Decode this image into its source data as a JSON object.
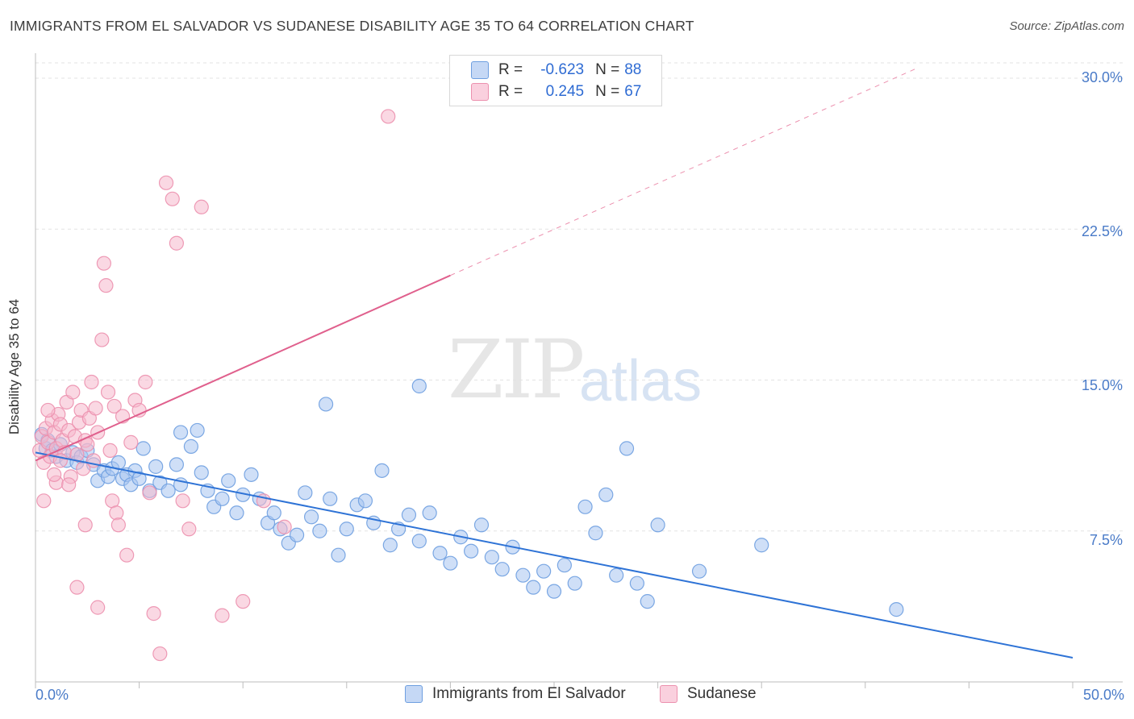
{
  "title": "IMMIGRANTS FROM EL SALVADOR VS SUDANESE DISABILITY AGE 35 TO 64 CORRELATION CHART",
  "source": "Source: ZipAtlas.com",
  "watermark": {
    "zip": "ZIP",
    "atlas": "atlas"
  },
  "legend_top": [
    {
      "r_label": "R =",
      "r_value": "-0.623",
      "n_label": "N =",
      "n_value": "88",
      "color": "#a8c5f0"
    },
    {
      "r_label": "R =",
      "r_value": "0.245",
      "n_label": "N =",
      "n_value": "67",
      "color": "#f6b8cc"
    }
  ],
  "colors": {
    "blue_fill": "#a8c5f0",
    "blue_stroke": "#6e9fe0",
    "blue_line": "#2e73d6",
    "pink_fill": "#f6b8cc",
    "pink_stroke": "#ec90ae",
    "pink_line": "#e0608d",
    "grid": "#e3e3e3",
    "tick_text": "#4a7bc8"
  },
  "chart_data": {
    "type": "scatter",
    "title": "IMMIGRANTS FROM EL SALVADOR VS SUDANESE DISABILITY AGE 35 TO 64 CORRELATION CHART",
    "xlabel": "",
    "ylabel": "Disability Age 35 to 64",
    "xlim": [
      0,
      50
    ],
    "ylim": [
      0,
      31
    ],
    "x_tick_labels": [
      "0.0%",
      "50.0%"
    ],
    "y_ticks": [
      7.5,
      15.0,
      22.5,
      30.0
    ],
    "y_tick_labels": [
      "7.5%",
      "15.0%",
      "22.5%",
      "30.0%"
    ],
    "grid": true,
    "legend_position": "top-center",
    "series": [
      {
        "name": "Immigrants from El Salvador",
        "color": "#a8c5f0",
        "trend": {
          "x": [
            0,
            50
          ],
          "y": [
            11.4,
            1.2
          ],
          "style": "solid"
        },
        "points": [
          [
            0.3,
            12.3
          ],
          [
            0.5,
            11.6
          ],
          [
            0.6,
            12.0
          ],
          [
            0.8,
            11.5
          ],
          [
            1.0,
            11.2
          ],
          [
            1.2,
            11.8
          ],
          [
            1.5,
            11.0
          ],
          [
            1.8,
            11.4
          ],
          [
            2.0,
            10.9
          ],
          [
            2.2,
            11.2
          ],
          [
            2.5,
            11.5
          ],
          [
            2.8,
            10.8
          ],
          [
            3.0,
            10.0
          ],
          [
            3.3,
            10.5
          ],
          [
            3.5,
            10.2
          ],
          [
            3.7,
            10.6
          ],
          [
            4.0,
            10.9
          ],
          [
            4.2,
            10.1
          ],
          [
            4.4,
            10.3
          ],
          [
            4.6,
            9.8
          ],
          [
            4.8,
            10.5
          ],
          [
            5.0,
            10.1
          ],
          [
            5.2,
            11.6
          ],
          [
            5.5,
            9.5
          ],
          [
            5.8,
            10.7
          ],
          [
            6.0,
            9.9
          ],
          [
            6.4,
            9.5
          ],
          [
            6.8,
            10.8
          ],
          [
            7.0,
            9.8
          ],
          [
            7.5,
            11.7
          ],
          [
            7.8,
            12.5
          ],
          [
            8.0,
            10.4
          ],
          [
            8.3,
            9.5
          ],
          [
            8.6,
            8.7
          ],
          [
            9.0,
            9.1
          ],
          [
            9.3,
            10.0
          ],
          [
            9.7,
            8.4
          ],
          [
            10.0,
            9.3
          ],
          [
            10.4,
            10.3
          ],
          [
            10.8,
            9.1
          ],
          [
            11.2,
            7.9
          ],
          [
            11.5,
            8.4
          ],
          [
            11.8,
            7.6
          ],
          [
            12.2,
            6.9
          ],
          [
            12.6,
            7.3
          ],
          [
            13.0,
            9.4
          ],
          [
            13.3,
            8.2
          ],
          [
            13.7,
            7.5
          ],
          [
            14.2,
            9.1
          ],
          [
            14.6,
            6.3
          ],
          [
            15.0,
            7.6
          ],
          [
            15.5,
            8.8
          ],
          [
            15.9,
            9.0
          ],
          [
            16.3,
            7.9
          ],
          [
            16.7,
            10.5
          ],
          [
            17.1,
            6.8
          ],
          [
            17.5,
            7.6
          ],
          [
            18.0,
            8.3
          ],
          [
            18.5,
            7.0
          ],
          [
            19.0,
            8.4
          ],
          [
            19.5,
            6.4
          ],
          [
            20.0,
            5.9
          ],
          [
            20.5,
            7.2
          ],
          [
            21.0,
            6.5
          ],
          [
            21.5,
            7.8
          ],
          [
            22.0,
            6.2
          ],
          [
            22.5,
            5.6
          ],
          [
            23.0,
            6.7
          ],
          [
            23.5,
            5.3
          ],
          [
            24.0,
            4.7
          ],
          [
            24.5,
            5.5
          ],
          [
            25.0,
            4.5
          ],
          [
            25.5,
            5.8
          ],
          [
            26.0,
            4.9
          ],
          [
            26.5,
            8.7
          ],
          [
            27.0,
            7.4
          ],
          [
            27.5,
            9.3
          ],
          [
            28.0,
            5.3
          ],
          [
            28.5,
            11.6
          ],
          [
            29.0,
            4.9
          ],
          [
            29.5,
            4.0
          ],
          [
            30.0,
            7.8
          ],
          [
            32.0,
            5.5
          ],
          [
            35.0,
            6.8
          ],
          [
            41.5,
            3.6
          ],
          [
            7.0,
            12.4
          ],
          [
            14.0,
            13.8
          ],
          [
            18.5,
            14.7
          ]
        ]
      },
      {
        "name": "Sudanese",
        "color": "#f6b8cc",
        "trend": {
          "x": [
            0,
            20
          ],
          "y": [
            11.0,
            20.2
          ],
          "style": "solid",
          "dashed_extension": {
            "x": [
              20,
              42.5
            ],
            "y": [
              20.2,
              30.5
            ]
          }
        },
        "points": [
          [
            0.2,
            11.5
          ],
          [
            0.3,
            12.2
          ],
          [
            0.4,
            10.9
          ],
          [
            0.5,
            12.6
          ],
          [
            0.6,
            11.9
          ],
          [
            0.7,
            11.2
          ],
          [
            0.8,
            13.0
          ],
          [
            0.9,
            12.4
          ],
          [
            1.0,
            11.6
          ],
          [
            1.1,
            13.3
          ],
          [
            1.2,
            12.8
          ],
          [
            1.3,
            12.0
          ],
          [
            1.4,
            11.4
          ],
          [
            1.5,
            13.9
          ],
          [
            1.6,
            12.5
          ],
          [
            1.7,
            10.2
          ],
          [
            1.8,
            14.4
          ],
          [
            1.9,
            12.2
          ],
          [
            2.0,
            11.3
          ],
          [
            2.1,
            12.9
          ],
          [
            2.2,
            13.5
          ],
          [
            2.3,
            10.6
          ],
          [
            2.4,
            12.0
          ],
          [
            2.5,
            11.8
          ],
          [
            2.6,
            13.1
          ],
          [
            2.7,
            14.9
          ],
          [
            2.8,
            11.0
          ],
          [
            2.9,
            13.6
          ],
          [
            3.0,
            12.4
          ],
          [
            3.2,
            17.0
          ],
          [
            3.3,
            20.8
          ],
          [
            3.4,
            19.7
          ],
          [
            3.5,
            14.4
          ],
          [
            3.6,
            11.5
          ],
          [
            3.7,
            9.0
          ],
          [
            3.8,
            13.7
          ],
          [
            3.9,
            8.4
          ],
          [
            4.0,
            7.8
          ],
          [
            4.2,
            13.2
          ],
          [
            4.4,
            6.3
          ],
          [
            4.6,
            11.9
          ],
          [
            4.8,
            14.0
          ],
          [
            5.0,
            13.5
          ],
          [
            5.3,
            14.9
          ],
          [
            5.5,
            9.4
          ],
          [
            5.7,
            3.4
          ],
          [
            6.0,
            1.4
          ],
          [
            6.3,
            24.8
          ],
          [
            6.6,
            24.0
          ],
          [
            6.8,
            21.8
          ],
          [
            7.1,
            9.0
          ],
          [
            7.4,
            7.6
          ],
          [
            8.0,
            23.6
          ],
          [
            9.0,
            3.3
          ],
          [
            10.0,
            4.0
          ],
          [
            11.0,
            9.0
          ],
          [
            12.0,
            7.7
          ],
          [
            17.0,
            28.1
          ],
          [
            2.0,
            4.7
          ],
          [
            3.0,
            3.7
          ],
          [
            1.0,
            9.9
          ],
          [
            0.4,
            9.0
          ],
          [
            1.6,
            9.8
          ],
          [
            2.4,
            7.8
          ],
          [
            0.9,
            10.3
          ],
          [
            1.2,
            11.0
          ],
          [
            0.6,
            13.5
          ]
        ]
      }
    ]
  },
  "legend_bottom": [
    {
      "label": "Immigrants from El Salvador",
      "color": "#a8c5f0"
    },
    {
      "label": "Sudanese",
      "color": "#f6b8cc"
    }
  ]
}
